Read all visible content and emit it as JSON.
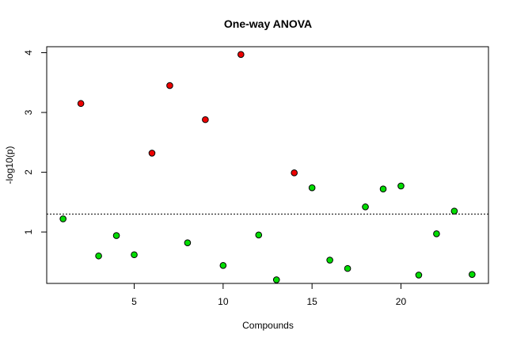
{
  "chart_data": {
    "type": "scatter",
    "title": "One-way ANOVA",
    "xlabel": "Compounds",
    "ylabel": "-log10(p)",
    "xlim": [
      0.08,
      24.92
    ],
    "ylim": [
      0.14,
      4.1
    ],
    "x_ticks": [
      5,
      10,
      15,
      20
    ],
    "y_ticks": [
      1,
      2,
      3,
      4
    ],
    "threshold": 1.3,
    "grid": false,
    "legend": "none",
    "colors": {
      "significant": "#ee0000",
      "not_significant": "#00dd00",
      "outline": "#000000"
    },
    "points": [
      {
        "x": 1,
        "y": 1.22,
        "significant": false
      },
      {
        "x": 2,
        "y": 3.15,
        "significant": true
      },
      {
        "x": 3,
        "y": 0.6,
        "significant": false
      },
      {
        "x": 4,
        "y": 0.94,
        "significant": false
      },
      {
        "x": 5,
        "y": 0.62,
        "significant": false
      },
      {
        "x": 6,
        "y": 2.32,
        "significant": true
      },
      {
        "x": 7,
        "y": 3.45,
        "significant": true
      },
      {
        "x": 8,
        "y": 0.82,
        "significant": false
      },
      {
        "x": 9,
        "y": 2.88,
        "significant": true
      },
      {
        "x": 10,
        "y": 0.44,
        "significant": false
      },
      {
        "x": 11,
        "y": 3.97,
        "significant": true
      },
      {
        "x": 12,
        "y": 0.95,
        "significant": false
      },
      {
        "x": 13,
        "y": 0.2,
        "significant": false
      },
      {
        "x": 14,
        "y": 1.99,
        "significant": true
      },
      {
        "x": 15,
        "y": 1.74,
        "significant": false
      },
      {
        "x": 16,
        "y": 0.53,
        "significant": false
      },
      {
        "x": 17,
        "y": 0.39,
        "significant": false
      },
      {
        "x": 18,
        "y": 1.42,
        "significant": false
      },
      {
        "x": 19,
        "y": 1.72,
        "significant": false
      },
      {
        "x": 20,
        "y": 1.77,
        "significant": false
      },
      {
        "x": 21,
        "y": 0.28,
        "significant": false
      },
      {
        "x": 22,
        "y": 0.97,
        "significant": false
      },
      {
        "x": 23,
        "y": 1.35,
        "significant": false
      },
      {
        "x": 24,
        "y": 0.29,
        "significant": false
      }
    ]
  }
}
